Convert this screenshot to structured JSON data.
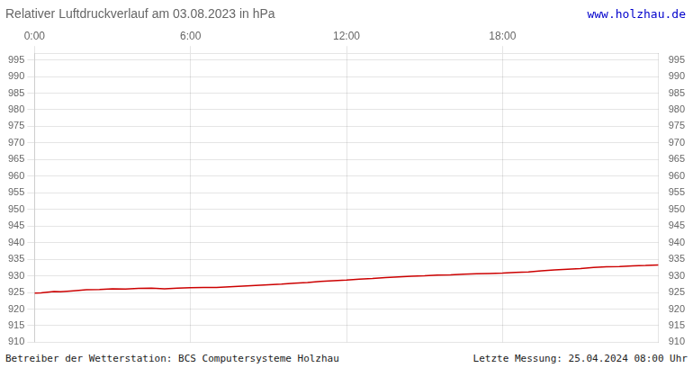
{
  "chart_data": {
    "type": "line",
    "title": "Relativer Luftdruckverlauf am 03.08.2023 in hPa",
    "annotations": [
      {
        "text": "www.holzhau.de",
        "color": "#0000cc"
      },
      {
        "text": "Betreiber der Wetterstation: BCS Computersysteme Holzhau"
      },
      {
        "text": "Letzte Messung: 25.04.2024 08:00 Uhr"
      }
    ],
    "x": [
      0.0,
      0.25,
      0.5,
      0.75,
      1.0,
      1.5,
      2.0,
      2.5,
      3.0,
      3.5,
      4.0,
      4.5,
      5.0,
      5.5,
      6.0,
      6.5,
      7.0,
      7.5,
      8.0,
      8.5,
      9.0,
      9.5,
      10.0,
      10.5,
      11.0,
      11.5,
      12.0,
      12.5,
      13.0,
      13.5,
      14.0,
      14.5,
      15.0,
      15.5,
      16.0,
      16.5,
      17.0,
      17.5,
      18.0,
      18.5,
      19.0,
      19.5,
      20.0,
      20.5,
      21.0,
      21.5,
      22.0,
      22.5,
      23.0,
      23.5,
      24.0
    ],
    "series": [
      {
        "name": "Luftdruck",
        "color": "#cc0000",
        "values": [
          924.8,
          924.9,
          925.1,
          925.3,
          925.2,
          925.5,
          925.8,
          925.9,
          926.1,
          926.0,
          926.2,
          926.3,
          926.1,
          926.3,
          926.4,
          926.5,
          926.5,
          926.7,
          926.9,
          927.1,
          927.3,
          927.5,
          927.8,
          928.0,
          928.3,
          928.5,
          928.7,
          929.0,
          929.2,
          929.5,
          929.7,
          929.9,
          930.0,
          930.2,
          930.3,
          930.5,
          930.6,
          930.7,
          930.8,
          931.0,
          931.2,
          931.5,
          931.8,
          932.0,
          932.2,
          932.5,
          932.7,
          932.8,
          933.0,
          933.1,
          933.3
        ]
      }
    ],
    "xlim": [
      0,
      24
    ],
    "xticks": [
      {
        "value": 0,
        "label": "0:00"
      },
      {
        "value": 6,
        "label": "6:00"
      },
      {
        "value": 12,
        "label": "12:00"
      },
      {
        "value": 18,
        "label": "18:00"
      }
    ],
    "ylim": [
      910,
      997
    ],
    "yticks": [
      910,
      915,
      920,
      925,
      930,
      935,
      940,
      945,
      950,
      955,
      960,
      965,
      970,
      975,
      980,
      985,
      990,
      995
    ],
    "y2lim": [
      910,
      997
    ],
    "y2ticks": [
      910,
      915,
      920,
      925,
      930,
      935,
      940,
      945,
      950,
      955,
      960,
      965,
      970,
      975,
      980,
      985,
      990,
      995
    ],
    "grid": true
  }
}
